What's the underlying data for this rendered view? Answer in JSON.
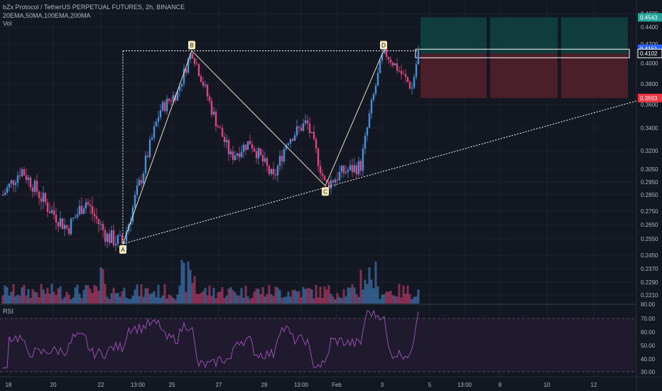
{
  "header": {
    "title": "bZx Protocol / TetherUS PERPETUAL FUTURES, 2h, BINANCE",
    "indicators": "20EMA,50MA,100EMA,200MA",
    "volume_label": "Vol"
  },
  "rsi": {
    "label": "RSI",
    "ticks": [
      "80.00",
      "70.00",
      "60.00",
      "50.00",
      "40.00",
      "30.00"
    ]
  },
  "colors": {
    "bg": "#131722",
    "up": "#4a90d9",
    "down": "#e0457b",
    "grid": "#2a2e39",
    "pattern": "#e8e0c0",
    "target": "#0f3d3e",
    "stop": "#4a1f2a",
    "rsi": "#9a4fb0"
  },
  "chart_data": {
    "type": "candlestick",
    "title": "bZx Protocol / TetherUS PERPETUAL FUTURES, 2h, BINANCE",
    "price_ticks": [
      "0.4600",
      "0.4400",
      "0.4200",
      "0.4000",
      "0.3800",
      "0.3600",
      "0.3400",
      "0.3200",
      "0.3050",
      "0.2950",
      "0.2850",
      "0.2750",
      "0.2650",
      "0.2550",
      "0.2450",
      "0.2370",
      "0.2290",
      "0.2210"
    ],
    "x_ticks": [
      "18",
      "20",
      "22",
      "13:00",
      "25",
      "27",
      "29",
      "13:00",
      "Feb",
      "3",
      "5",
      "13:00",
      "8",
      "10",
      "12"
    ],
    "price_labels": [
      {
        "text": "0.4543",
        "kind": "target"
      },
      {
        "text": "0.4151",
        "kind": "last"
      },
      {
        "text": "0.4102",
        "kind": "entry"
      },
      {
        "text": "0.3663",
        "kind": "stop"
      }
    ],
    "pattern_points": [
      {
        "label": "A",
        "price": 0.252
      },
      {
        "label": "B",
        "price": 0.413
      },
      {
        "label": "C",
        "price": 0.292
      },
      {
        "label": "D",
        "price": 0.413
      }
    ],
    "entry_price": 0.4102,
    "target_price": 0.4543,
    "stop_price": 0.3663,
    "rsi_last": 68
  }
}
